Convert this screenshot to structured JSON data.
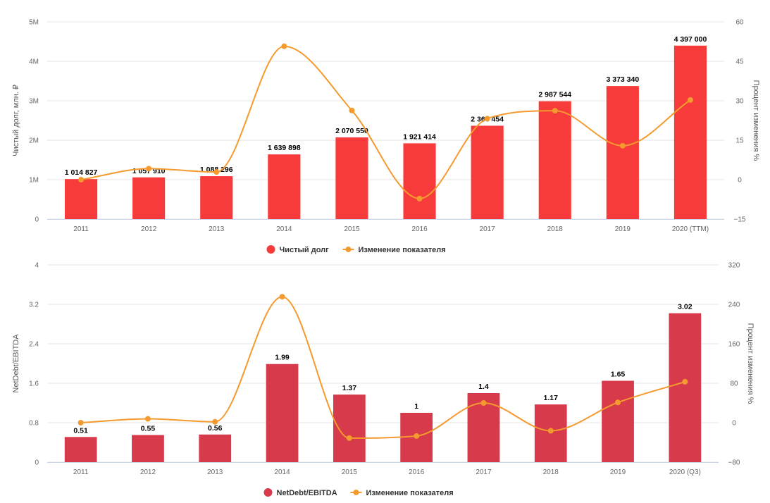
{
  "chart_data": [
    {
      "type": "bar",
      "categories": [
        "2011",
        "2012",
        "2013",
        "2014",
        "2015",
        "2016",
        "2017",
        "2018",
        "2019",
        "2020 (TTM)"
      ],
      "series": [
        {
          "name": "Чистый долг",
          "type": "bar",
          "axis": "left",
          "color": "#f73b3b",
          "values": [
            1014827,
            1057910,
            1088296,
            1639898,
            2070550,
            1921414,
            2366454,
            2987544,
            3373340,
            4397000
          ],
          "labels": [
            "1 014 827",
            "1 057 910",
            "1 088 296",
            "1 639 898",
            "2 070 550",
            "1 921 414",
            "2 366 454",
            "2 987 544",
            "3 373 340",
            "4 397 000"
          ]
        },
        {
          "name": "Изменение показателя",
          "type": "line",
          "axis": "right",
          "color": "#f59a2e",
          "values": [
            0,
            4.2,
            2.9,
            50.7,
            26.3,
            -7.2,
            23.2,
            26.2,
            12.9,
            30.3
          ]
        }
      ],
      "ylabel": "Чистый долг, млн. ₽",
      "ylim": [
        0,
        5000000
      ],
      "yticks": [
        "0",
        "1M",
        "2M",
        "3M",
        "4M",
        "5M"
      ],
      "y2label": "Процент изменения %",
      "y2lim": [
        -15,
        60
      ],
      "y2ticks": [
        "−15",
        "0",
        "15",
        "30",
        "45",
        "60"
      ],
      "grid": true,
      "legend": "bottom"
    },
    {
      "type": "bar",
      "categories": [
        "2011",
        "2012",
        "2013",
        "2014",
        "2015",
        "2016",
        "2017",
        "2018",
        "2019",
        "2020 (Q3)"
      ],
      "series": [
        {
          "name": "NetDebt/EBITDA",
          "type": "bar",
          "axis": "left",
          "color": "#d73a4a",
          "values": [
            0.51,
            0.55,
            0.56,
            1.99,
            1.37,
            1,
            1.4,
            1.17,
            1.65,
            3.02
          ],
          "labels": [
            "0.51",
            "0.55",
            "0.56",
            "1.99",
            "1.37",
            "1",
            "1.4",
            "1.17",
            "1.65",
            "3.02"
          ]
        },
        {
          "name": "Изменение показателя",
          "type": "line",
          "axis": "right",
          "color": "#f59a2e",
          "values": [
            0,
            7.8,
            1.8,
            255.4,
            -31.2,
            -27,
            40,
            -16.4,
            41,
            83
          ]
        }
      ],
      "ylabel": "NetDebt/EBITDA",
      "ylim": [
        0,
        4
      ],
      "yticks": [
        "0",
        "0.8",
        "1.6",
        "2.4",
        "3.2",
        "4"
      ],
      "y2label": "Процент изменения %",
      "y2lim": [
        -80,
        320
      ],
      "y2ticks": [
        "−80",
        "0",
        "80",
        "160",
        "240",
        "320"
      ],
      "grid": true,
      "legend": "bottom"
    }
  ]
}
